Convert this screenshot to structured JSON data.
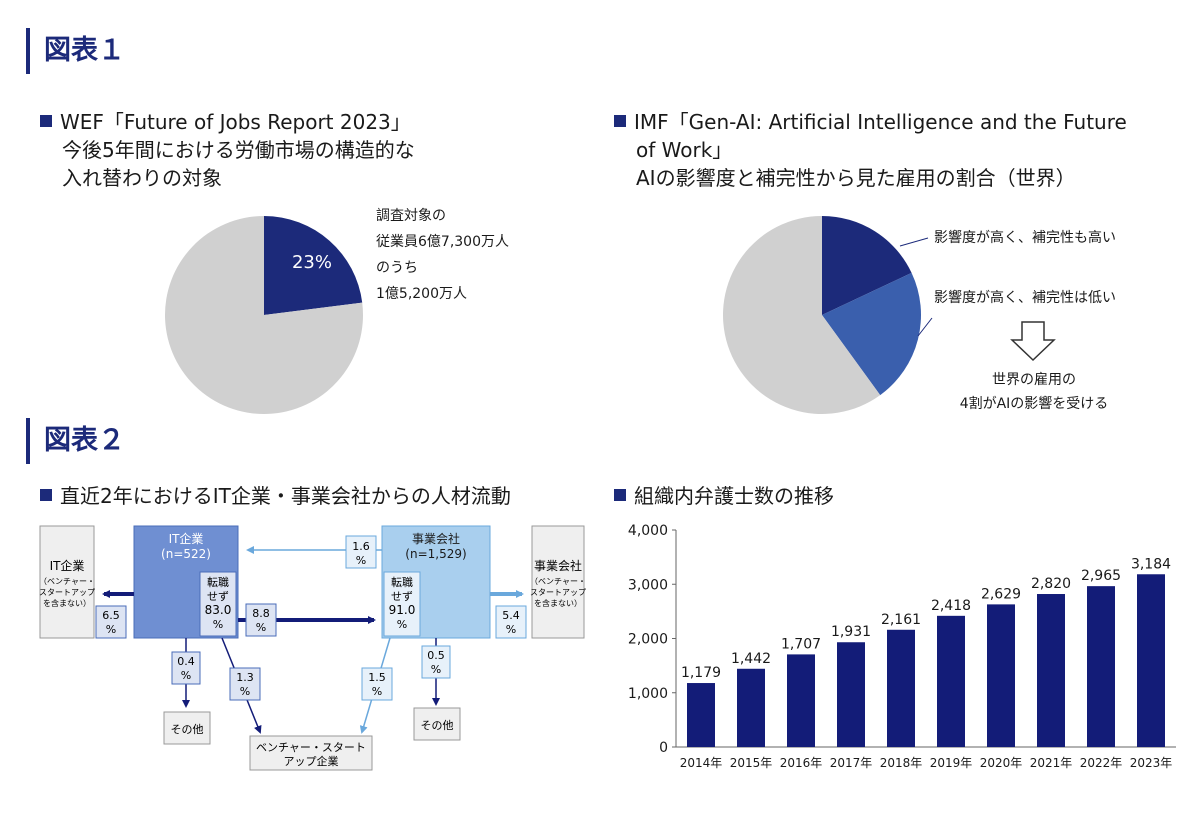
{
  "figure1": {
    "title": "図表１",
    "wef": {
      "title_lines": [
        "WEF「Future of Jobs Report 2023」",
        "今後5年間における労働市場の構造的な",
        "入れ替わりの対象"
      ],
      "slice_label": "23%",
      "note_lines": [
        "調査対象の",
        "従業員6億7,300万人",
        "のうち",
        "1億5,200万人"
      ]
    },
    "imf": {
      "title_lines": [
        "IMF「Gen-AI: Artificial Intelligence and the Future",
        "of Work」",
        "AIの影響度と補完性から見た雇用の割合（世界）"
      ],
      "label_high_high": "影響度が高く、補完性も高い",
      "label_high_low": "影響度が高く、補完性は低い",
      "conclusion_lines": [
        "世界の雇用の",
        "4割がAIの影響を受ける"
      ]
    }
  },
  "figure2": {
    "title": "図表２",
    "flow": {
      "title": "直近2年におけるIT企業・事業会社からの人材流動",
      "it_box": [
        "IT企業",
        "(n=522)"
      ],
      "biz_box": [
        "事業会社",
        "(n=1,529)"
      ],
      "left_box": [
        "IT企業",
        "（ベンチャー・",
        "スタートアップ",
        "を含まない）"
      ],
      "right_box": [
        "事業会社",
        "（ベンチャー・",
        "スタートアップ",
        "を含まない）"
      ],
      "it_stay": [
        "転職",
        "せず",
        "83.0",
        "%"
      ],
      "biz_stay": [
        "転職",
        "せず",
        "91.0",
        "%"
      ],
      "biz_to_it": [
        "1.6",
        "%"
      ],
      "it_to_left": [
        "6.5",
        "%"
      ],
      "it_to_biz": [
        "8.8",
        "%"
      ],
      "biz_to_right": [
        "5.4",
        "%"
      ],
      "it_to_other": [
        "0.4",
        "%"
      ],
      "it_to_venture": [
        "1.3",
        "%"
      ],
      "biz_to_venture": [
        "1.5",
        "%"
      ],
      "biz_to_other": [
        "0.5",
        "%"
      ],
      "other_label": "その他",
      "venture_box": [
        "ベンチャー・スタート",
        "アップ企業"
      ]
    },
    "bar": {
      "title": "組織内弁護士数の推移"
    }
  },
  "chart_data": [
    {
      "type": "pie",
      "title": "WEF「Future of Jobs Report 2023」今後5年間における労働市場の構造的な入れ替わりの対象",
      "labels": [
        "入れ替わりの対象",
        "その他"
      ],
      "values": [
        23,
        77
      ],
      "colors": [
        "#1c2a7a",
        "#d0d0d0"
      ]
    },
    {
      "type": "pie",
      "title": "IMF「Gen-AI: Artificial Intelligence and the Future of Work」AIの影響度と補完性から見た雇用の割合（世界）",
      "labels": [
        "影響度が高く、補完性も高い",
        "影響度が高く、補完性は低い",
        "その他"
      ],
      "values": [
        18,
        22,
        60
      ],
      "colors": [
        "#1c2a7a",
        "#3a5fad",
        "#d0d0d0"
      ]
    },
    {
      "type": "bar",
      "title": "組織内弁護士数の推移",
      "categories": [
        "2014年",
        "2015年",
        "2016年",
        "2017年",
        "2018年",
        "2019年",
        "2020年",
        "2021年",
        "2022年",
        "2023年"
      ],
      "values": [
        1179,
        1442,
        1707,
        1931,
        2161,
        2418,
        2629,
        2820,
        2965,
        3184
      ],
      "value_labels": [
        "1,179",
        "1,442",
        "1,707",
        "1,931",
        "2,161",
        "2,418",
        "2,629",
        "2,820",
        "2,965",
        "3,184"
      ],
      "ylim": [
        0,
        4000
      ],
      "yticks": [
        0,
        1000,
        2000,
        3000,
        4000
      ],
      "ytick_labels": [
        "0",
        "1,000",
        "2,000",
        "3,000",
        "4,000"
      ],
      "color": "#131c78"
    }
  ]
}
